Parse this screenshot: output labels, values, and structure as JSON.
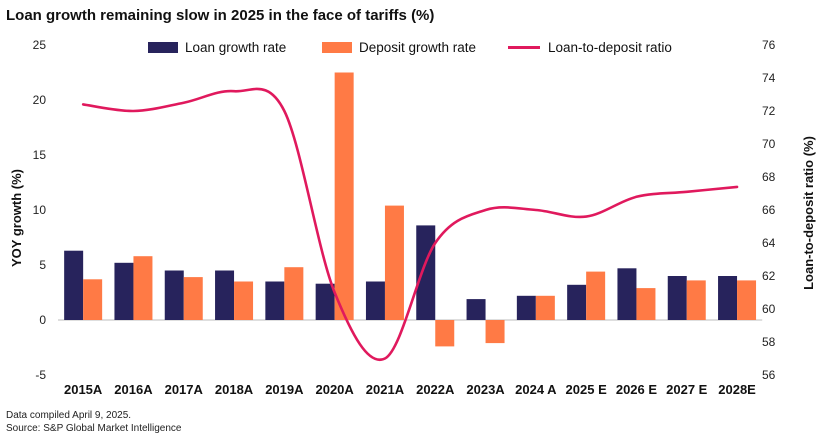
{
  "chart_data": {
    "type": "bar",
    "title": "Loan growth remaining slow in 2025 in the face of tariffs (%)",
    "ylabel": "YOY growth (%)",
    "y2label": "Loan-to-deposit ratio (%)",
    "ylim": [
      -5,
      25
    ],
    "y2lim": [
      56,
      76
    ],
    "yticks": [
      -5,
      0,
      5,
      10,
      15,
      20,
      25
    ],
    "y2ticks": [
      56,
      58,
      60,
      62,
      64,
      66,
      68,
      70,
      72,
      74,
      76
    ],
    "categories": [
      "2015A",
      "2016A",
      "2017A",
      "2018A",
      "2019A",
      "2020A",
      "2021A",
      "2022A",
      "2023A",
      "2024 A",
      "2025 E",
      "2026 E",
      "2027 E",
      "2028E"
    ],
    "series": [
      {
        "name": "Loan growth rate",
        "type": "bar",
        "axis": "left",
        "color": "#27235c",
        "values": [
          6.3,
          5.2,
          4.5,
          4.5,
          3.5,
          3.3,
          3.5,
          8.6,
          1.9,
          2.2,
          3.2,
          4.7,
          4.0,
          4.0
        ]
      },
      {
        "name": "Deposit growth rate",
        "type": "bar",
        "axis": "left",
        "color": "#ff7a45",
        "values": [
          3.7,
          5.8,
          3.9,
          3.5,
          4.8,
          22.5,
          10.4,
          -2.4,
          -2.1,
          2.2,
          4.4,
          2.9,
          3.6,
          3.6
        ]
      },
      {
        "name": "Loan-to-deposit ratio",
        "type": "line",
        "axis": "right",
        "color": "#e0195d",
        "values": [
          72.4,
          72.0,
          72.5,
          73.2,
          72.0,
          61.0,
          57.0,
          64.0,
          66.0,
          66.0,
          65.6,
          66.8,
          67.1,
          67.4
        ]
      }
    ],
    "footnotes": [
      "Data compiled April 9, 2025.",
      "Source: S&P Global Market Intelligence"
    ]
  }
}
